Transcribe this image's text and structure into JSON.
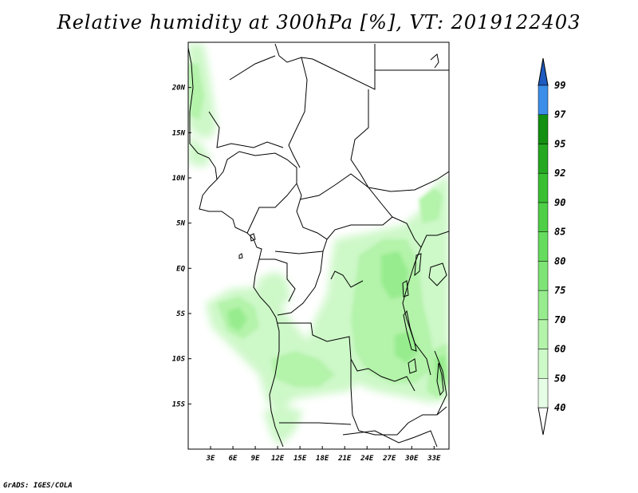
{
  "title": "Relative humidity at 300hPa [%], VT: 2019122403",
  "credit": "GrADS: IGES/COLA",
  "map": {
    "lon_range": [
      0,
      35
    ],
    "lat_range": [
      -20,
      25
    ],
    "lon_ticks": [
      "3E",
      "6E",
      "9E",
      "12E",
      "15E",
      "18E",
      "21E",
      "24E",
      "27E",
      "30E",
      "33E"
    ],
    "lon_tick_values": [
      3,
      6,
      9,
      12,
      15,
      18,
      21,
      24,
      27,
      30,
      33
    ],
    "lat_ticks": [
      "20N",
      "15N",
      "10N",
      "5N",
      "EQ",
      "5S",
      "10S",
      "15S"
    ],
    "lat_tick_values": [
      20,
      15,
      10,
      5,
      0,
      -5,
      -10,
      -15
    ]
  },
  "colorbar": {
    "levels": [
      "40",
      "50",
      "60",
      "70",
      "75",
      "80",
      "85",
      "90",
      "92",
      "95",
      "97",
      "99"
    ],
    "colors": [
      "#e6fde6",
      "#cdf8c8",
      "#b4f3aa",
      "#97ec8e",
      "#7fe476",
      "#66dc5e",
      "#4fcf47",
      "#38bf32",
      "#24a821",
      "#138f12",
      "#3c8ee8",
      "#2a6fd6",
      "#1f5ac0"
    ]
  },
  "chart_data": {
    "type": "heatmap",
    "title": "Relative humidity at 300hPa [%], VT: 2019122403",
    "variable": "Relative humidity at 300hPa",
    "unit": "%",
    "valid_time": "2019122403",
    "xrange": [
      0,
      35
    ],
    "yrange": [
      -20,
      25
    ],
    "contour_levels": [
      40,
      50,
      60,
      70,
      75,
      80,
      85,
      90,
      92,
      95,
      97,
      99
    ]
  }
}
